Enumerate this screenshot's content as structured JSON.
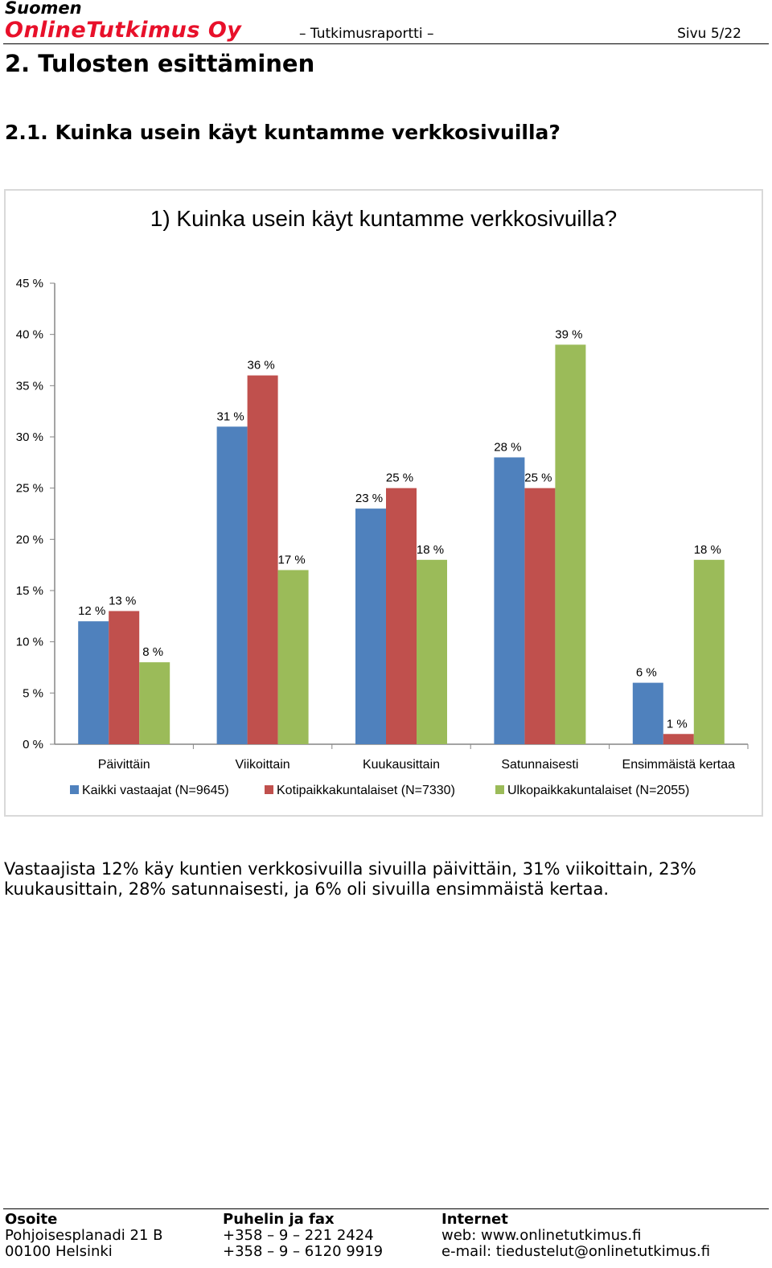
{
  "header": {
    "company_line1": "Suomen",
    "company_line2": "OnlineTutkimus Oy",
    "report_label": "– Tutkimusraportti –",
    "page_label": "Sivu 5/22"
  },
  "section_title": "2. Tulosten esittäminen",
  "subsection_title": "2.1. Kuinka usein käyt kuntamme verkkosivuilla?",
  "chart_data": {
    "type": "bar",
    "title": "1) Kuinka usein käyt kuntamme verkkosivuilla?",
    "categories": [
      "Päivittäin",
      "Viikoittain",
      "Kuukausittain",
      "Satunnaisesti",
      "Ensimmäistä kertaa"
    ],
    "series": [
      {
        "name": "Kaikki vastaajat (N=9645)",
        "values": [
          12,
          31,
          23,
          28,
          6
        ],
        "labels": [
          "12 %",
          "31 %",
          "23 %",
          "28 %",
          "6 %"
        ],
        "color": "#4f81bd"
      },
      {
        "name": "Kotipaikkakuntalaiset (N=7330)",
        "values": [
          13,
          36,
          25,
          25,
          1
        ],
        "labels": [
          "13 %",
          "36 %",
          "25 %",
          "25 %",
          "1 %"
        ],
        "color": "#c0504d"
      },
      {
        "name": "Ulkopaikkakuntalaiset (N=2055)",
        "values": [
          8,
          17,
          18,
          39,
          18
        ],
        "labels": [
          "8 %",
          "17 %",
          "18 %",
          "39 %",
          "18 %"
        ],
        "color": "#9bbb59"
      }
    ],
    "y_ticks": [
      "0 %",
      "5 %",
      "10 %",
      "15 %",
      "20 %",
      "25 %",
      "30 %",
      "35 %",
      "40 %",
      "45 %"
    ],
    "ylim": [
      0,
      45
    ],
    "grid": false,
    "legend_position": "bottom"
  },
  "summary_text": "Vastaajista 12% käy kuntien verkkosivuilla sivuilla päivittäin, 31% viikoittain, 23% kuukausittain, 28% satunnaisesti, ja 6% oli sivuilla ensimmäistä kertaa.",
  "footer": {
    "address_title": "Osoite",
    "address_line1": "Pohjoisesplanadi 21 B",
    "address_line2": "00100 Helsinki",
    "phone_title": "Puhelin ja fax",
    "phone_line1": "+358 – 9 – 221 2424",
    "phone_line2": "+358 – 9 – 6120 9919",
    "internet_title": "Internet",
    "internet_line1": "web: www.onlinetutkimus.fi",
    "internet_line2": "e-mail: tiedustelut@onlinetutkimus.fi"
  }
}
